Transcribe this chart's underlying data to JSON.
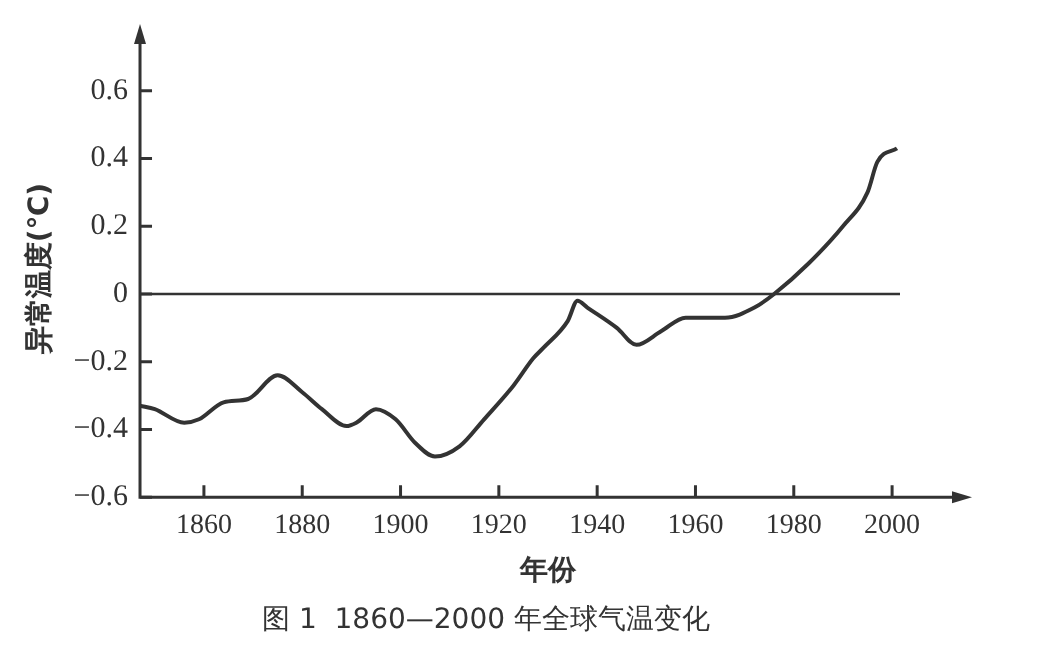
{
  "chart_data": {
    "type": "line",
    "title": "图 1  1860—2000 年全球气温变化",
    "xlabel": "年份",
    "ylabel": "异常温度(℃)",
    "x": [
      1847,
      1850,
      1856,
      1859,
      1864,
      1869,
      1875,
      1880,
      1884,
      1889,
      1891,
      1895,
      1899,
      1903,
      1907,
      1912,
      1917,
      1923,
      1927,
      1929,
      1934,
      1936,
      1938,
      1944,
      1948,
      1953,
      1958,
      1966,
      1972,
      1976,
      1983,
      1990,
      1995,
      1997,
      2001
    ],
    "series": [
      {
        "color": "#333333",
        "values": [
          -0.33,
          -0.34,
          -0.38,
          -0.37,
          -0.32,
          -0.31,
          -0.24,
          -0.29,
          -0.34,
          -0.39,
          -0.38,
          -0.34,
          -0.37,
          -0.44,
          -0.48,
          -0.45,
          -0.37,
          -0.27,
          -0.19,
          -0.16,
          -0.08,
          -0.02,
          -0.04,
          -0.1,
          -0.15,
          -0.11,
          -0.07,
          -0.07,
          -0.04,
          0,
          0.09,
          0.2,
          0.3,
          0.39,
          0.43
        ]
      }
    ],
    "xlim": [
      1847,
      2013
    ],
    "xticks": [
      1860,
      1880,
      1900,
      1920,
      1940,
      1960,
      1980,
      2000
    ],
    "ylim": [
      -0.6,
      0.75
    ],
    "yticks": [
      {
        "value": -0.6,
        "label": "−0.6"
      },
      {
        "value": -0.4,
        "label": "−0.4"
      },
      {
        "value": -0.2,
        "label": "−0.2"
      },
      0,
      0.2,
      0.4,
      0.6
    ],
    "ref_lines": [
      {
        "axis": "y",
        "value": 0,
        "color": "#333333"
      }
    ],
    "grid": false,
    "legend": false,
    "marker": "none",
    "line_style": "solid"
  }
}
